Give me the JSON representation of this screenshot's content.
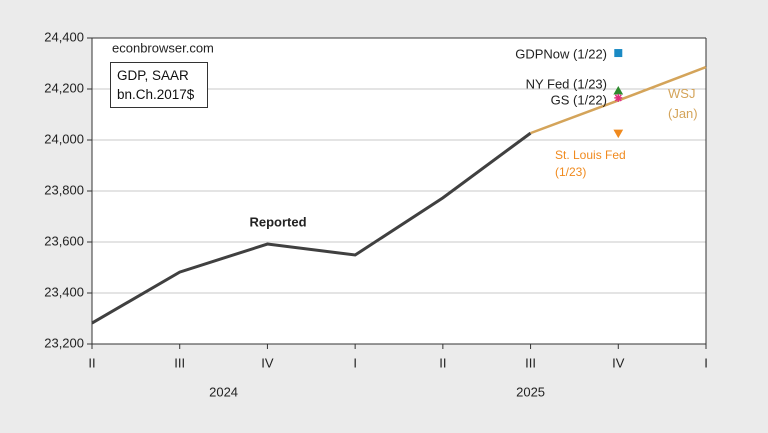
{
  "chart_data": {
    "type": "line",
    "box_text": [
      "GDP, SAAR",
      "bn.Ch.2017$"
    ],
    "source": "econbrowser.com",
    "categories": [
      "II",
      "III",
      "IV",
      "I",
      "II",
      "III",
      "IV",
      "I"
    ],
    "year_labels": [
      "2024",
      "2025"
    ],
    "ylim": [
      23200,
      24400
    ],
    "yticks": [
      {
        "value": 23200,
        "label": "23,200"
      },
      {
        "value": 23400,
        "label": "23,400"
      },
      {
        "value": 23600,
        "label": "23,600"
      },
      {
        "value": 23800,
        "label": "23,800"
      },
      {
        "value": 24000,
        "label": "24,000"
      },
      {
        "value": 24200,
        "label": "24,200"
      },
      {
        "value": 24400,
        "label": "24,400"
      }
    ],
    "grid": true,
    "series": [
      {
        "name": "Reported",
        "color": "#404040",
        "marker": "line",
        "values": [
          23282,
          23482,
          23592,
          23549,
          23773,
          24027,
          null,
          null
        ]
      },
      {
        "name": "WSJ (Jan)",
        "color": "#d4a45a",
        "marker": "line",
        "values": [
          null,
          null,
          null,
          null,
          null,
          24027,
          24155,
          24286
        ]
      },
      {
        "name": "GDPNow (1/22)",
        "color": "#1a8ac4",
        "marker": "square",
        "values": [
          null,
          null,
          null,
          null,
          null,
          null,
          24341,
          null
        ]
      },
      {
        "name": "NY Fed (1/23)",
        "color": "#2e8b2e",
        "marker": "triangle-up",
        "values": [
          null,
          null,
          null,
          null,
          null,
          null,
          24192,
          null
        ]
      },
      {
        "name": "GS (1/22)",
        "color": "#e0307f",
        "marker": "star",
        "values": [
          null,
          null,
          null,
          null,
          null,
          null,
          24165,
          null
        ]
      },
      {
        "name": "St. Louis Fed (1/23)",
        "color": "#f08a1e",
        "marker": "triangle-down",
        "values": [
          null,
          null,
          null,
          null,
          null,
          null,
          24027,
          null
        ]
      }
    ]
  }
}
